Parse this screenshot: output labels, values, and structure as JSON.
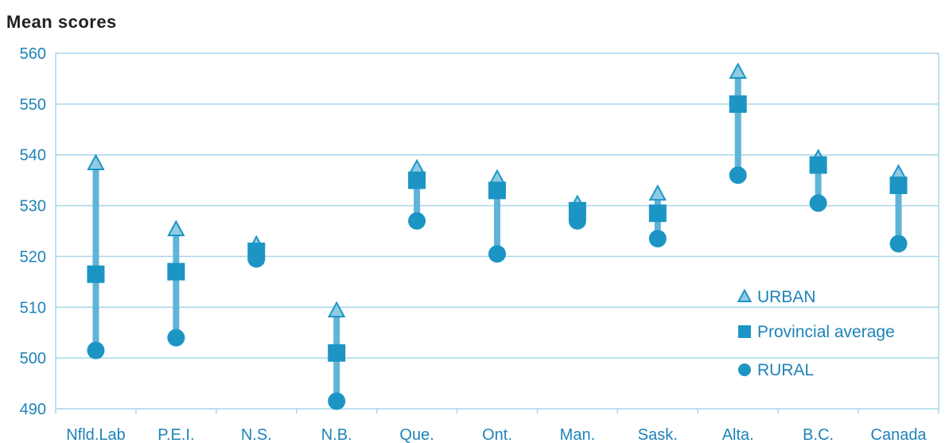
{
  "chart_data": {
    "type": "scatter",
    "ylabel": "Mean scores",
    "ylim": [
      490,
      560
    ],
    "yticks": [
      490,
      500,
      510,
      520,
      530,
      540,
      550,
      560
    ],
    "grid": true,
    "legend_position": "bottom-right",
    "categories": [
      "Nfld.Lab",
      "P.E.I.",
      "N.S.",
      "N.B.",
      "Que.",
      "Ont.",
      "Man.",
      "Sask.",
      "Alta.",
      "B.C.",
      "Canada"
    ],
    "series": [
      {
        "name": "URBAN",
        "marker": "triangle",
        "values": [
          538,
          525,
          522,
          509,
          537,
          535,
          530,
          532,
          556,
          539,
          536
        ]
      },
      {
        "name": "Provincial average",
        "marker": "square",
        "values": [
          516.5,
          517,
          521,
          501,
          535,
          533,
          529,
          528.5,
          550,
          538,
          534
        ]
      },
      {
        "name": "RURAL",
        "marker": "circle",
        "values": [
          501.5,
          504,
          519.5,
          491.5,
          527,
          520.5,
          527,
          523.5,
          536,
          530.5,
          522.5
        ]
      }
    ],
    "colors": {
      "marker_fill": "#1c95c5",
      "triangle_fill": "#8fcbe3",
      "range_bar": "#5fb4d8",
      "grid": "#a9d6ea",
      "text": "#1e83b8",
      "title": "#222222"
    }
  }
}
